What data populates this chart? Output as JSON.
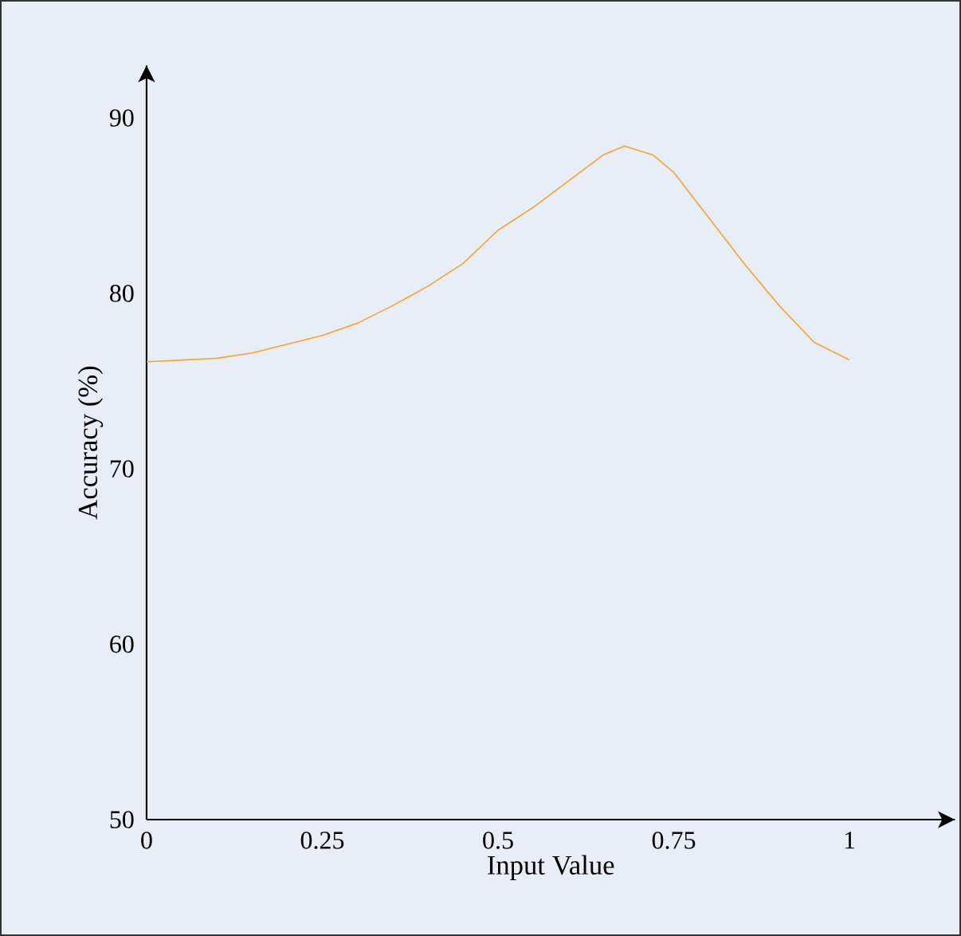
{
  "chart_data": {
    "type": "line",
    "xlabel": "Input Value",
    "ylabel": "Accuracy (%)",
    "xlim": [
      0,
      1.15
    ],
    "ylim": [
      50,
      93
    ],
    "xticks": [
      0,
      0.25,
      0.5,
      0.75,
      1
    ],
    "yticks": [
      50,
      60,
      70,
      80,
      90
    ],
    "marker": "none",
    "line_style": "solid",
    "series": [
      {
        "color": "#f5a623",
        "x": [
          0,
          0.05,
          0.1,
          0.15,
          0.2,
          0.25,
          0.3,
          0.35,
          0.4,
          0.45,
          0.5,
          0.55,
          0.6,
          0.65,
          0.68,
          0.72,
          0.75,
          0.8,
          0.85,
          0.9,
          0.95,
          1
        ],
        "values": [
          76.1,
          76.2,
          76.3,
          76.6,
          77.1,
          77.6,
          78.3,
          79.3,
          80.4,
          81.7,
          83.6,
          84.9,
          86.4,
          87.9,
          88.4,
          87.9,
          86.9,
          84.3,
          81.7,
          79.3,
          77.2,
          76.2
        ]
      }
    ]
  }
}
